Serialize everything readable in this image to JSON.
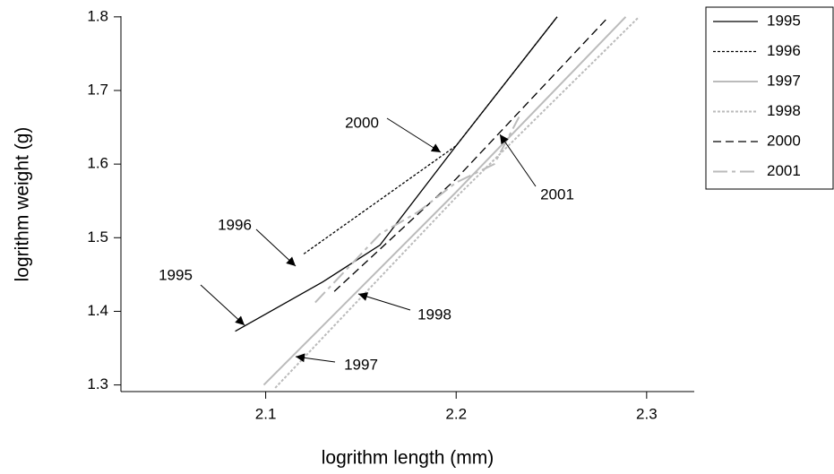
{
  "chart_data": {
    "type": "line",
    "xlabel": "logrithm length (mm)",
    "ylabel": "logrithm weight (g)",
    "xlim": [
      2.024,
      2.325
    ],
    "ylim": [
      1.291,
      1.801
    ],
    "xticks": [
      2.1,
      2.2,
      2.3
    ],
    "yticks": [
      1.3,
      1.4,
      1.5,
      1.6,
      1.7,
      1.8
    ],
    "legend": "outside-right",
    "series": [
      {
        "name": "1995",
        "color": "#000000",
        "dash": "solid",
        "x": [
          2.084,
          2.13,
          2.16,
          2.2,
          2.253
        ],
        "values": [
          1.373,
          1.44,
          1.49,
          1.625,
          1.8
        ]
      },
      {
        "name": "1996",
        "color": "#000000",
        "dash": "dotted",
        "x": [
          2.12,
          2.2,
          2.253
        ],
        "values": [
          1.478,
          1.625,
          1.8
        ]
      },
      {
        "name": "1997",
        "color": "#bbbbbb",
        "dash": "solid",
        "x": [
          2.099,
          2.2,
          2.289
        ],
        "values": [
          1.3,
          1.562,
          1.8
        ]
      },
      {
        "name": "1998",
        "color": "#bbbbbb",
        "dash": "dotted",
        "x": [
          2.105,
          2.2,
          2.296
        ],
        "values": [
          1.296,
          1.555,
          1.8
        ]
      },
      {
        "name": "2000",
        "color": "#000000",
        "dash": "dashed",
        "x": [
          2.136,
          2.2,
          2.28
        ],
        "values": [
          1.427,
          1.58,
          1.8
        ]
      },
      {
        "name": "2001",
        "color": "#bbbbbb",
        "dash": "longdash",
        "x": [
          2.126,
          2.16,
          2.18,
          2.2,
          2.22,
          2.233
        ],
        "values": [
          1.412,
          1.505,
          1.535,
          1.575,
          1.6,
          1.664
        ]
      }
    ],
    "annotations": [
      "2000",
      "2001",
      "1996",
      "1995",
      "1998",
      "1997"
    ]
  }
}
